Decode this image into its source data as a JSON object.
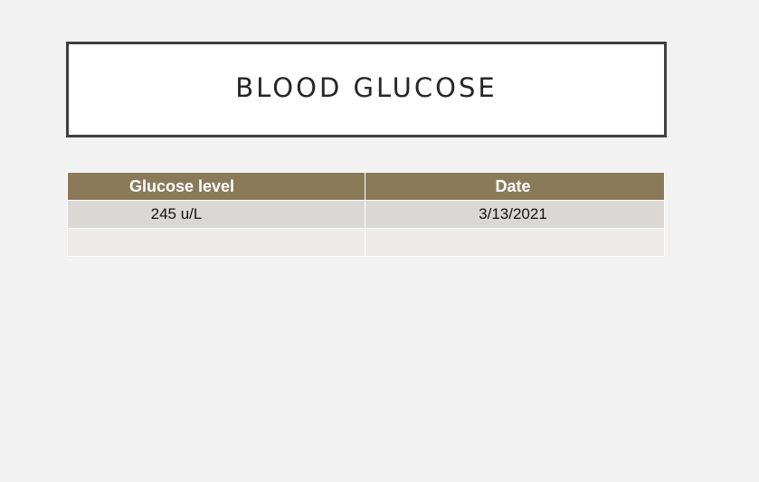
{
  "slide": {
    "title": "BLOOD GLUCOSE"
  },
  "table": {
    "headers": [
      "Glucose level",
      "Date"
    ],
    "rows": [
      [
        "245 u/L",
        "3/13/2021"
      ],
      [
        "",
        ""
      ]
    ]
  },
  "colors": {
    "background": "#f2f2f2",
    "header_fill": "#8b7a5a",
    "row_band_1": "#d9d8d5",
    "row_band_2": "#ecebe9",
    "title_border": "#3f3f3f"
  }
}
